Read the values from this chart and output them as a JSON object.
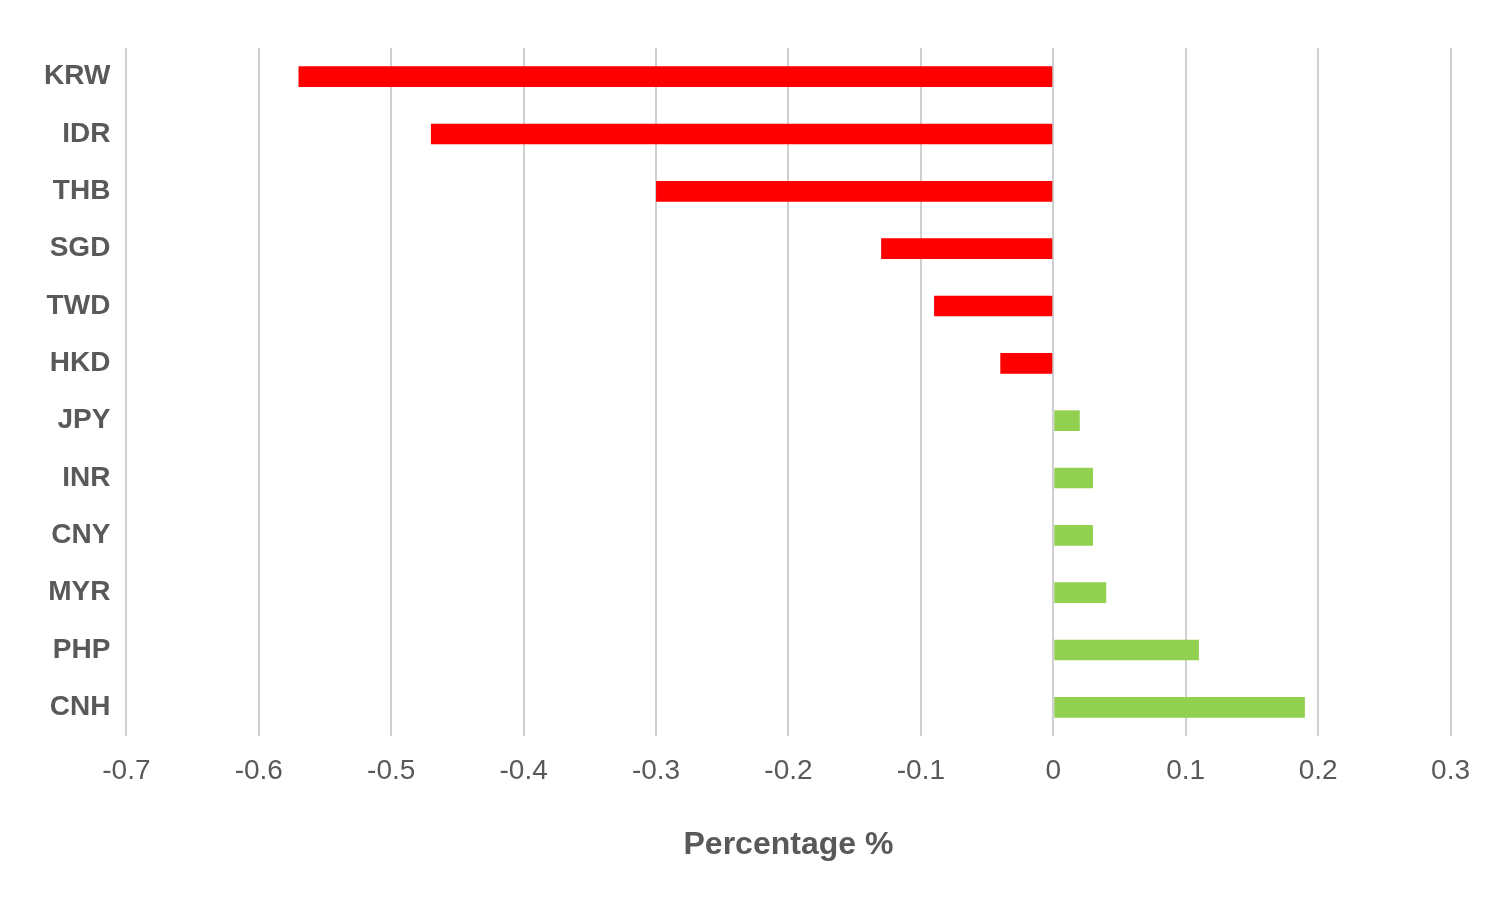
{
  "chart_data": {
    "type": "bar",
    "orientation": "horizontal",
    "xlabel": "Percentage %",
    "categories": [
      "KRW",
      "IDR",
      "THB",
      "SGD",
      "TWD",
      "HKD",
      "JPY",
      "INR",
      "CNY",
      "MYR",
      "PHP",
      "CNH"
    ],
    "values": [
      -0.57,
      -0.47,
      -0.3,
      -0.13,
      -0.09,
      -0.04,
      0.02,
      0.03,
      0.03,
      0.04,
      0.11,
      0.19
    ],
    "colors": [
      "#ff0000",
      "#ff0000",
      "#ff0000",
      "#ff0000",
      "#ff0000",
      "#ff0000",
      "#92d050",
      "#92d050",
      "#92d050",
      "#92d050",
      "#92d050",
      "#92d050"
    ],
    "xlim": [
      -0.7,
      0.3
    ],
    "xticks": [
      -0.7,
      -0.6,
      -0.5,
      -0.4,
      -0.3,
      -0.2,
      -0.1,
      0,
      0.1,
      0.2,
      0.3
    ],
    "grid": "x",
    "legend": false
  }
}
